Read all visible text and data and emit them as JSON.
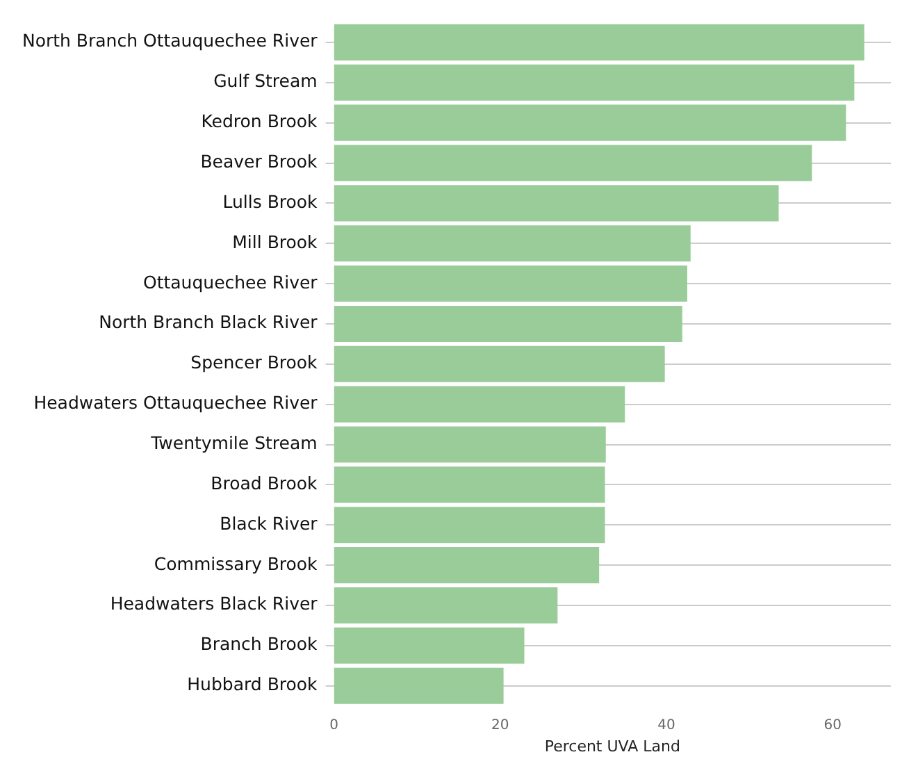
{
  "chart_data": {
    "type": "bar",
    "orientation": "horizontal",
    "xlabel": "Percent UVA Land",
    "categories": [
      "North Branch Ottauquechee River",
      "Gulf Stream",
      "Kedron Brook",
      "Beaver Brook",
      "Lulls Brook",
      "Mill Brook",
      "Ottauquechee River",
      "North Branch Black River",
      "Spencer Brook",
      "Headwaters Ottauquechee River",
      "Twentymile Stream",
      "Broad Brook",
      "Black River",
      "Commissary Brook",
      "Headwaters Black River",
      "Branch Brook",
      "Hubbard Brook"
    ],
    "values": [
      63.8,
      62.6,
      61.6,
      57.5,
      53.5,
      42.9,
      42.5,
      41.9,
      39.8,
      35.0,
      32.7,
      32.6,
      32.6,
      31.9,
      26.9,
      22.9,
      20.4
    ],
    "color": "#99cc99",
    "xlim": [
      0,
      67
    ],
    "xticks": [
      0,
      20,
      40,
      60
    ],
    "grid": "y",
    "legend": false
  }
}
